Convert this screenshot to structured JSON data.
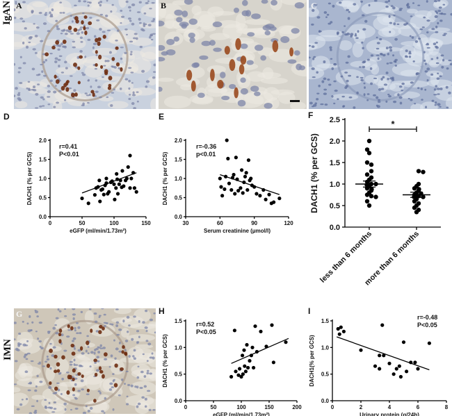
{
  "groups": {
    "igan": "IgAN",
    "imn": "IMN"
  },
  "micrographs": [
    {
      "id": "A",
      "label": "A",
      "kind": "glomerulus-stained",
      "bg": "#c9d1de"
    },
    {
      "id": "B",
      "label": "B",
      "kind": "zoom-stained",
      "bg": "#d7d4cc"
    },
    {
      "id": "C",
      "label": "C",
      "kind": "unstained",
      "bg": "#a9b6cf"
    },
    {
      "id": "G",
      "label": "G",
      "kind": "glomerulus-stained",
      "bg": "#cfc7b9"
    }
  ],
  "chart_data": [
    {
      "panel": "D",
      "type": "scatter",
      "xlabel": "eGFP (ml/min/1.73m²)",
      "ylabel": "DACH1 (% per GCS)",
      "xlim": [
        0,
        150
      ],
      "ylim": [
        0,
        2.0
      ],
      "xticks": [
        "0",
        "50",
        "100",
        "150"
      ],
      "yticks": [
        "0.0",
        "0.5",
        "1.0",
        "1.5",
        "2.0"
      ],
      "annotation": [
        "r=0.41",
        "P<0.01"
      ],
      "fit": {
        "x": [
          50,
          135
        ],
        "y": [
          0.62,
          1.15
        ]
      },
      "points": [
        [
          50,
          0.48
        ],
        [
          60,
          0.35
        ],
        [
          70,
          0.57
        ],
        [
          72,
          0.75
        ],
        [
          75,
          0.78
        ],
        [
          77,
          0.95
        ],
        [
          78,
          0.4
        ],
        [
          80,
          0.7
        ],
        [
          82,
          0.72
        ],
        [
          84,
          0.58
        ],
        [
          86,
          0.82
        ],
        [
          88,
          0.88
        ],
        [
          88,
          1.0
        ],
        [
          90,
          0.6
        ],
        [
          92,
          0.65
        ],
        [
          95,
          0.9
        ],
        [
          97,
          0.93
        ],
        [
          100,
          0.85
        ],
        [
          101,
          0.45
        ],
        [
          103,
          0.75
        ],
        [
          104,
          1.12
        ],
        [
          105,
          0.98
        ],
        [
          106,
          0.6
        ],
        [
          108,
          0.85
        ],
        [
          110,
          0.95
        ],
        [
          112,
          0.77
        ],
        [
          113,
          1.2
        ],
        [
          115,
          0.8
        ],
        [
          118,
          0.95
        ],
        [
          120,
          1.0
        ],
        [
          122,
          1.3
        ],
        [
          125,
          1.6
        ],
        [
          125,
          0.75
        ],
        [
          127,
          1.0
        ],
        [
          130,
          1.15
        ],
        [
          132,
          0.75
        ],
        [
          135,
          0.65
        ]
      ]
    },
    {
      "panel": "E",
      "type": "scatter",
      "xlabel": "Serum creatinine (μmol/l)",
      "ylabel": "DACH1 (% per GCS)",
      "xlim": [
        30,
        120
      ],
      "ylim": [
        0,
        2.0
      ],
      "xticks": [
        "30",
        "60",
        "90",
        "120"
      ],
      "yticks": [
        "0.0",
        "0.5",
        "1.0",
        "1.5",
        "2.0"
      ],
      "annotation": [
        "r=-0.36",
        "p<0.01"
      ],
      "fit": {
        "x": [
          60,
          112
        ],
        "y": [
          1.1,
          0.58
        ]
      },
      "points": [
        [
          60,
          1.0
        ],
        [
          61,
          0.78
        ],
        [
          62,
          0.55
        ],
        [
          64,
          0.72
        ],
        [
          65,
          1.05
        ],
        [
          66,
          2.0
        ],
        [
          67,
          1.52
        ],
        [
          68,
          0.87
        ],
        [
          70,
          0.7
        ],
        [
          71,
          1.02
        ],
        [
          72,
          1.1
        ],
        [
          73,
          0.6
        ],
        [
          74,
          1.55
        ],
        [
          75,
          0.98
        ],
        [
          76,
          0.68
        ],
        [
          78,
          0.75
        ],
        [
          79,
          1.22
        ],
        [
          80,
          0.62
        ],
        [
          81,
          0.9
        ],
        [
          82,
          1.05
        ],
        [
          83,
          1.15
        ],
        [
          84,
          0.7
        ],
        [
          85,
          1.48
        ],
        [
          86,
          0.95
        ],
        [
          87,
          1.0
        ],
        [
          88,
          0.82
        ],
        [
          90,
          0.78
        ],
        [
          92,
          0.6
        ],
        [
          95,
          0.55
        ],
        [
          98,
          0.7
        ],
        [
          100,
          0.45
        ],
        [
          103,
          0.58
        ],
        [
          105,
          0.35
        ],
        [
          107,
          0.38
        ],
        [
          112,
          0.48
        ]
      ]
    },
    {
      "panel": "F",
      "type": "scatter",
      "ylabel": "DACH1 (% per GCS)",
      "ylim": [
        0,
        2.5
      ],
      "yticks": [
        "0.0",
        "0.5",
        "1.0",
        "1.5",
        "2.0",
        "2.5"
      ],
      "categories": [
        "less than 6 months",
        "more than 6 months"
      ],
      "significance": "*",
      "means": [
        1.0,
        0.75
      ],
      "sem": [
        0.07,
        0.06
      ],
      "series": [
        {
          "values": [
            2.0,
            1.8,
            1.72,
            1.5,
            1.45,
            1.3,
            1.22,
            1.15,
            1.1,
            1.05,
            1.0,
            1.0,
            0.98,
            0.95,
            0.9,
            0.88,
            0.85,
            0.8,
            0.75,
            0.72,
            0.7,
            0.6,
            0.5
          ]
        },
        {
          "values": [
            1.3,
            1.28,
            1.0,
            0.95,
            0.9,
            0.88,
            0.85,
            0.8,
            0.78,
            0.75,
            0.72,
            0.7,
            0.7,
            0.65,
            0.6,
            0.55,
            0.5,
            0.45,
            0.4,
            0.35
          ]
        }
      ]
    },
    {
      "panel": "H",
      "type": "scatter",
      "xlabel": "eGFP (ml/min/1.73m²)",
      "ylabel": "DACH1 (% per GCS)",
      "xlim": [
        0,
        200
      ],
      "ylim": [
        0,
        1.5
      ],
      "xticks": [
        "0",
        "50",
        "100",
        "150",
        "200"
      ],
      "yticks": [
        "0.0",
        "0.5",
        "1.0",
        "1.5"
      ],
      "annotation": [
        "r=0.52",
        "P<0.05"
      ],
      "fit": {
        "x": [
          82,
          185
        ],
        "y": [
          0.7,
          1.17
        ]
      },
      "points": [
        [
          82,
          0.45
        ],
        [
          88,
          1.32
        ],
        [
          90,
          0.55
        ],
        [
          95,
          0.48
        ],
        [
          97,
          0.6
        ],
        [
          100,
          0.45
        ],
        [
          102,
          0.85
        ],
        [
          103,
          0.5
        ],
        [
          105,
          0.95
        ],
        [
          106,
          0.65
        ],
        [
          108,
          0.55
        ],
        [
          110,
          1.05
        ],
        [
          112,
          0.62
        ],
        [
          115,
          0.75
        ],
        [
          118,
          0.85
        ],
        [
          120,
          1.0
        ],
        [
          122,
          0.62
        ],
        [
          125,
          1.4
        ],
        [
          128,
          0.92
        ],
        [
          135,
          1.3
        ],
        [
          145,
          1.02
        ],
        [
          155,
          1.42
        ],
        [
          158,
          0.72
        ],
        [
          180,
          1.1
        ]
      ]
    },
    {
      "panel": "I",
      "type": "scatter",
      "xlabel": "Urinary protein (g/24h)",
      "ylabel": "DACH1(% per GCS)",
      "xlim": [
        0,
        8
      ],
      "ylim": [
        0,
        1.5
      ],
      "xticks": [
        "0",
        "2",
        "4",
        "6",
        "8"
      ],
      "yticks": [
        "0.0",
        "0.5",
        "1.0",
        "1.5"
      ],
      "annotation": [
        "r=-0.48",
        "P<0.05"
      ],
      "fit": {
        "x": [
          0.3,
          6.8
        ],
        "y": [
          1.2,
          0.58
        ]
      },
      "points": [
        [
          0.4,
          1.35
        ],
        [
          0.5,
          1.25
        ],
        [
          0.6,
          1.38
        ],
        [
          0.8,
          1.3
        ],
        [
          2.0,
          0.95
        ],
        [
          3.0,
          0.65
        ],
        [
          3.3,
          0.85
        ],
        [
          3.5,
          1.42
        ],
        [
          3.6,
          0.85
        ],
        [
          4.0,
          0.7
        ],
        [
          4.3,
          0.5
        ],
        [
          4.5,
          0.6
        ],
        [
          4.7,
          0.65
        ],
        [
          4.8,
          0.45
        ],
        [
          5.0,
          1.1
        ],
        [
          5.2,
          0.55
        ],
        [
          5.5,
          0.72
        ],
        [
          5.8,
          0.72
        ],
        [
          6.0,
          0.6
        ],
        [
          6.8,
          1.08
        ],
        [
          3.3,
          0.6
        ]
      ]
    }
  ]
}
